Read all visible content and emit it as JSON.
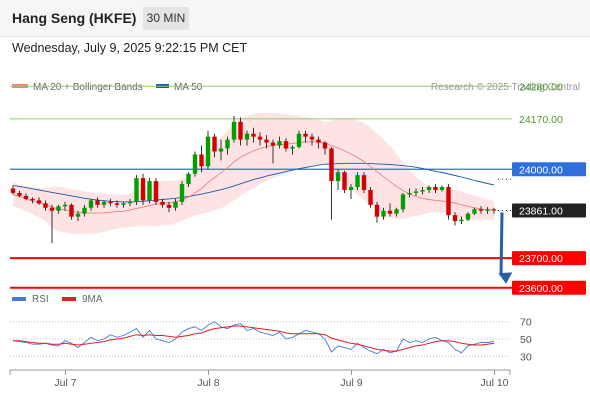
{
  "header": {
    "title": "Hang Seng (HKFE)",
    "timeframe": "30 MIN",
    "datetime": "Wednesday, July 9, 2025 9:22:15 PM CET"
  },
  "legend": {
    "ma20_label": "MA 20 + Bollinger Bands",
    "ma50_label": "MA 50",
    "credit": "Research © 2025 Trading Central",
    "rsi_label": "RSI",
    "ma9_label": "9MA"
  },
  "colors": {
    "up": "#00a000",
    "down": "#d40000",
    "ma20": "#f08080",
    "band_fill": "#fde3e3",
    "ma50": "#1f5aa8",
    "blue_level": "#2f6fdb",
    "red_level": "#ff0000",
    "green_level": "#8fcf6b",
    "rsi": "#4a78d8",
    "ma9": "#e02020",
    "arrow": "#2a5fa8"
  },
  "chart_data": {
    "type": "candlestick",
    "title": "Hang Seng (HKFE)",
    "price_levels": [
      {
        "value": 24280.0,
        "label": "24280.00",
        "kind": "resistance-green"
      },
      {
        "value": 24170.0,
        "label": "24170.00",
        "kind": "resistance-green"
      },
      {
        "value": 24000.0,
        "label": "24000.00",
        "kind": "pivot-blue"
      },
      {
        "value": 23861.0,
        "label": "23861.00",
        "kind": "last-price"
      },
      {
        "value": 23700.0,
        "label": "23700.00",
        "kind": "target-red"
      },
      {
        "value": 23600.0,
        "label": "23600.00",
        "kind": "target-red"
      }
    ],
    "x_labels": [
      "Jul 7",
      "Jul 8",
      "Jul 9",
      "Jul 10"
    ],
    "x_label_index": [
      5,
      27,
      49,
      71
    ],
    "candles_ohlc": [
      [
        23935,
        23945,
        23915,
        23920
      ],
      [
        23920,
        23928,
        23905,
        23910
      ],
      [
        23910,
        23918,
        23895,
        23900
      ],
      [
        23900,
        23905,
        23885,
        23895
      ],
      [
        23895,
        23905,
        23880,
        23885
      ],
      [
        23885,
        23895,
        23860,
        23870
      ],
      [
        23870,
        23880,
        23750,
        23860
      ],
      [
        23860,
        23880,
        23850,
        23875
      ],
      [
        23875,
        23890,
        23860,
        23880
      ],
      [
        23880,
        23885,
        23830,
        23840
      ],
      [
        23840,
        23860,
        23825,
        23850
      ],
      [
        23850,
        23880,
        23840,
        23870
      ],
      [
        23870,
        23900,
        23860,
        23895
      ],
      [
        23895,
        23905,
        23870,
        23880
      ],
      [
        23880,
        23895,
        23870,
        23890
      ],
      [
        23890,
        23900,
        23875,
        23885
      ],
      [
        23885,
        23895,
        23870,
        23880
      ],
      [
        23880,
        23890,
        23870,
        23885
      ],
      [
        23885,
        23900,
        23875,
        23890
      ],
      [
        23890,
        23980,
        23880,
        23970
      ],
      [
        23970,
        23985,
        23880,
        23895
      ],
      [
        23895,
        23970,
        23885,
        23960
      ],
      [
        23960,
        23970,
        23880,
        23890
      ],
      [
        23890,
        23900,
        23870,
        23880
      ],
      [
        23880,
        23890,
        23855,
        23870
      ],
      [
        23870,
        23900,
        23860,
        23890
      ],
      [
        23890,
        23960,
        23880,
        23950
      ],
      [
        23950,
        23990,
        23940,
        23985
      ],
      [
        23985,
        24060,
        23975,
        24050
      ],
      [
        24050,
        24080,
        23990,
        24010
      ],
      [
        24010,
        24130,
        24000,
        24110
      ],
      [
        24110,
        24120,
        24040,
        24060
      ],
      [
        24060,
        24100,
        24030,
        24070
      ],
      [
        24070,
        24110,
        24050,
        24100
      ],
      [
        24100,
        24180,
        24090,
        24160
      ],
      [
        24160,
        24175,
        24080,
        24100
      ],
      [
        24100,
        24130,
        24080,
        24120
      ],
      [
        24120,
        24140,
        24090,
        24110
      ],
      [
        24110,
        24125,
        24080,
        24100
      ],
      [
        24100,
        24115,
        24070,
        24090
      ],
      [
        24090,
        24100,
        24020,
        24080
      ],
      [
        24080,
        24110,
        24070,
        24095
      ],
      [
        24095,
        24105,
        24060,
        24070
      ],
      [
        24070,
        24080,
        24050,
        24075
      ],
      [
        24075,
        24130,
        24070,
        24120
      ],
      [
        24120,
        24130,
        24090,
        24110
      ],
      [
        24110,
        24120,
        24080,
        24100
      ],
      [
        24100,
        24110,
        24070,
        24090
      ],
      [
        24090,
        24095,
        24050,
        24070
      ],
      [
        24070,
        24075,
        23830,
        23960
      ],
      [
        23960,
        24000,
        23930,
        23990
      ],
      [
        23990,
        23995,
        23920,
        23930
      ],
      [
        23930,
        23950,
        23900,
        23940
      ],
      [
        23940,
        23990,
        23930,
        23980
      ],
      [
        23980,
        23990,
        23920,
        23930
      ],
      [
        23930,
        23940,
        23870,
        23880
      ],
      [
        23880,
        23890,
        23820,
        23840
      ],
      [
        23840,
        23870,
        23830,
        23860
      ],
      [
        23860,
        23885,
        23840,
        23850
      ],
      [
        23850,
        23870,
        23840,
        23865
      ],
      [
        23865,
        23920,
        23855,
        23915
      ],
      [
        23915,
        23935,
        23905,
        23920
      ],
      [
        23920,
        23935,
        23910,
        23925
      ],
      [
        23925,
        23940,
        23915,
        23930
      ],
      [
        23930,
        23945,
        23920,
        23940
      ],
      [
        23940,
        23950,
        23920,
        23930
      ],
      [
        23930,
        23945,
        23925,
        23940
      ],
      [
        23940,
        23950,
        23830,
        23845
      ],
      [
        23845,
        23855,
        23810,
        23825
      ],
      [
        23825,
        23840,
        23815,
        23830
      ],
      [
        23830,
        23855,
        23825,
        23850
      ],
      [
        23850,
        23870,
        23845,
        23865
      ],
      [
        23865,
        23875,
        23850,
        23860
      ],
      [
        23860,
        23872,
        23850,
        23865
      ],
      [
        23865,
        23870,
        23850,
        23861
      ]
    ],
    "ma20": [
      23915,
      23908,
      23900,
      23893,
      23887,
      23880,
      23872,
      23866,
      23862,
      23858,
      23855,
      23853,
      23852,
      23852,
      23853,
      23855,
      23857,
      23858,
      23862,
      23868,
      23872,
      23878,
      23882,
      23885,
      23887,
      23890,
      23897,
      23906,
      23920,
      23935,
      23955,
      23972,
      23988,
      24005,
      24025,
      24040,
      24052,
      24062,
      24070,
      24076,
      24080,
      24083,
      24085,
      24087,
      24090,
      24092,
      24093,
      24092,
      24090,
      24080,
      24072,
      24062,
      24052,
      24040,
      24026,
      24010,
      23992,
      23975,
      23958,
      23942,
      23928,
      23917,
      23908,
      23902,
      23898,
      23895,
      23893,
      23890,
      23886,
      23880,
      23875,
      23870,
      23866,
      23863,
      23861
    ],
    "ma50": [
      23945,
      23942,
      23938,
      23934,
      23930,
      23926,
      23922,
      23918,
      23914,
      23910,
      23906,
      23902,
      23899,
      23896,
      23894,
      23892,
      23891,
      23890,
      23890,
      23891,
      23892,
      23894,
      23896,
      23898,
      23900,
      23902,
      23905,
      23908,
      23912,
      23916,
      23921,
      23926,
      23931,
      23937,
      23944,
      23951,
      23958,
      23965,
      23971,
      23977,
      23982,
      23987,
      23992,
      23997,
      24002,
      24006,
      24010,
      24014,
      24017,
      24018,
      24019,
      24020,
      24020,
      24020,
      24020,
      24019,
      24018,
      24017,
      24016,
      24014,
      24012,
      24010,
      24007,
      24003,
      23998,
      23993,
      23989,
      23984,
      23979,
      23974,
      23968,
      23962,
      23957,
      23952,
      23947
    ],
    "bollinger_width": [
      40,
      40,
      42,
      45,
      50,
      55,
      70,
      75,
      75,
      75,
      75,
      72,
      70,
      68,
      65,
      60,
      58,
      55,
      58,
      60,
      62,
      70,
      75,
      75,
      75,
      72,
      70,
      70,
      75,
      85,
      100,
      110,
      120,
      125,
      130,
      130,
      128,
      125,
      120,
      115,
      110,
      105,
      100,
      95,
      90,
      85,
      80,
      75,
      70,
      85,
      100,
      110,
      120,
      125,
      130,
      130,
      128,
      125,
      120,
      110,
      95,
      80,
      65,
      55,
      45,
      40,
      38,
      38,
      45,
      45,
      42,
      40,
      38,
      35,
      33
    ],
    "rsi": [
      48,
      47,
      46,
      44,
      44,
      45,
      43,
      42,
      48,
      45,
      40,
      46,
      52,
      48,
      50,
      55,
      52,
      54,
      58,
      62,
      52,
      60,
      50,
      48,
      46,
      50,
      58,
      62,
      64,
      60,
      66,
      70,
      64,
      62,
      66,
      68,
      60,
      62,
      58,
      56,
      54,
      58,
      50,
      52,
      56,
      60,
      58,
      56,
      50,
      35,
      42,
      40,
      38,
      45,
      40,
      36,
      33,
      38,
      34,
      36,
      50,
      46,
      48,
      46,
      50,
      52,
      48,
      46,
      38,
      34,
      42,
      44,
      46,
      46,
      47
    ],
    "rsi_ma9": [
      48,
      48,
      47,
      46,
      45,
      45,
      44,
      44,
      45,
      44,
      43,
      44,
      45,
      46,
      47,
      49,
      50,
      51,
      53,
      55,
      54,
      55,
      54,
      54,
      53,
      52,
      53,
      54,
      56,
      57,
      60,
      62,
      63,
      64,
      65,
      65,
      64,
      63,
      62,
      61,
      60,
      59,
      57,
      56,
      56,
      56,
      56,
      56,
      55,
      51,
      49,
      47,
      45,
      44,
      42,
      40,
      38,
      37,
      36,
      36,
      38,
      40,
      42,
      43,
      45,
      47,
      48,
      48,
      47,
      45,
      44,
      43,
      43,
      44,
      45
    ],
    "rsi_levels": [
      70,
      50,
      30
    ],
    "rsi_ylim": [
      20,
      80
    ],
    "ylim": [
      23525,
      24335
    ],
    "forecast_target": 23600.0
  }
}
